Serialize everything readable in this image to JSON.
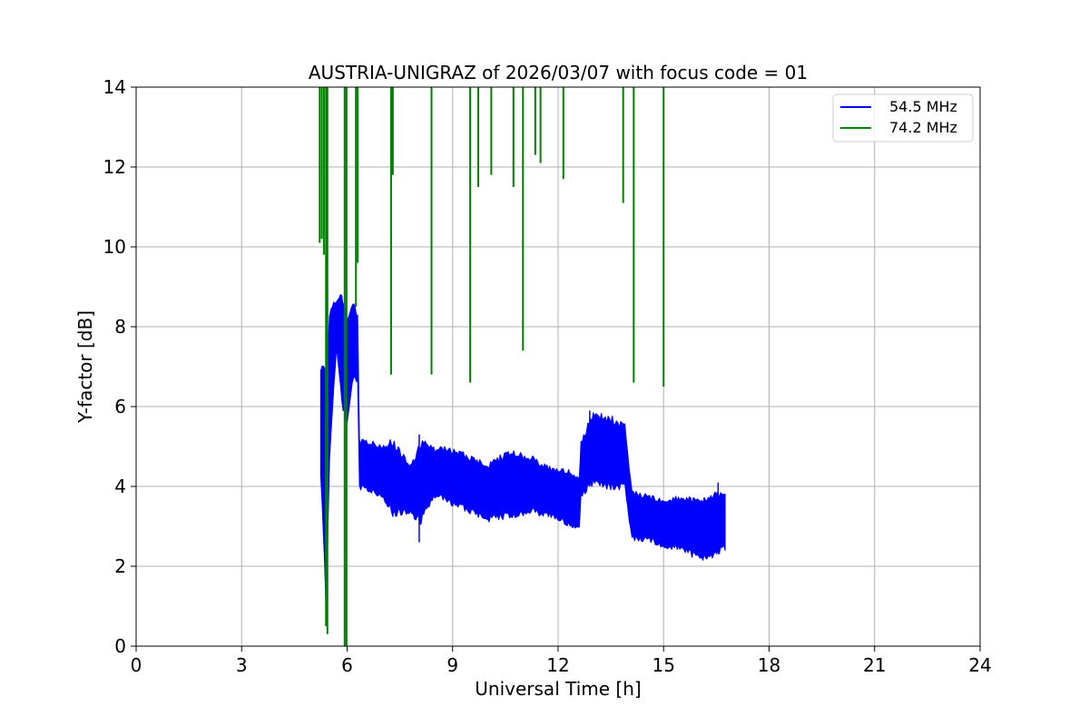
{
  "chart_data": {
    "type": "line",
    "title": "AUSTRIA-UNIGRAZ of 2026/03/07 with focus code = 01",
    "xlabel": "Universal Time [h]",
    "ylabel": "Y-factor [dB]",
    "xlim": [
      0,
      24
    ],
    "ylim": [
      0,
      14
    ],
    "xticks": [
      0,
      3,
      6,
      9,
      12,
      15,
      18,
      21,
      24
    ],
    "yticks": [
      0,
      2,
      4,
      6,
      8,
      10,
      12,
      14
    ],
    "grid": true,
    "legend_position": "top-right",
    "series": [
      {
        "name": "54.5 MHz",
        "color": "#0000ff",
        "render": "band",
        "points": [
          {
            "x": 5.25,
            "lo": 4.2,
            "hi": 7.2
          },
          {
            "x": 5.4,
            "lo": 0.5,
            "hi": 7.0
          },
          {
            "x": 5.5,
            "lo": 4.5,
            "hi": 8.6
          },
          {
            "x": 5.7,
            "lo": 7.4,
            "hi": 8.7
          },
          {
            "x": 5.85,
            "lo": 6.0,
            "hi": 9.0
          },
          {
            "x": 6.0,
            "lo": 5.5,
            "hi": 8.4
          },
          {
            "x": 6.15,
            "lo": 6.5,
            "hi": 8.7
          },
          {
            "x": 6.3,
            "lo": 6.6,
            "hi": 8.4
          },
          {
            "x": 6.35,
            "lo": 3.9,
            "hi": 5.2
          },
          {
            "x": 7.0,
            "lo": 3.7,
            "hi": 5.1
          },
          {
            "x": 7.3,
            "lo": 3.2,
            "hi": 5.2
          },
          {
            "x": 7.8,
            "lo": 3.3,
            "hi": 4.6
          },
          {
            "x": 8.1,
            "lo": 3.0,
            "hi": 5.2
          },
          {
            "x": 8.5,
            "lo": 3.7,
            "hi": 5.0
          },
          {
            "x": 9.0,
            "lo": 3.5,
            "hi": 5.0
          },
          {
            "x": 9.5,
            "lo": 3.3,
            "hi": 4.8
          },
          {
            "x": 10.0,
            "lo": 3.1,
            "hi": 4.6
          },
          {
            "x": 10.7,
            "lo": 3.2,
            "hi": 5.0
          },
          {
            "x": 11.2,
            "lo": 3.3,
            "hi": 4.8
          },
          {
            "x": 11.8,
            "lo": 3.2,
            "hi": 4.5
          },
          {
            "x": 12.3,
            "lo": 3.0,
            "hi": 4.5
          },
          {
            "x": 12.6,
            "lo": 2.9,
            "hi": 4.3
          },
          {
            "x": 12.65,
            "lo": 3.7,
            "hi": 5.2
          },
          {
            "x": 13.0,
            "lo": 4.0,
            "hi": 5.9
          },
          {
            "x": 13.5,
            "lo": 3.9,
            "hi": 5.8
          },
          {
            "x": 13.9,
            "lo": 3.9,
            "hi": 5.6
          },
          {
            "x": 14.1,
            "lo": 2.6,
            "hi": 3.9
          },
          {
            "x": 14.6,
            "lo": 2.6,
            "hi": 3.8
          },
          {
            "x": 15.0,
            "lo": 2.4,
            "hi": 3.7
          },
          {
            "x": 15.5,
            "lo": 2.4,
            "hi": 3.8
          },
          {
            "x": 16.0,
            "lo": 2.1,
            "hi": 3.7
          },
          {
            "x": 16.5,
            "lo": 2.2,
            "hi": 3.9
          },
          {
            "x": 16.75,
            "lo": 2.4,
            "hi": 3.8
          }
        ],
        "spikes": [
          {
            "x": 8.05,
            "lo": 2.6,
            "hi": 5.3
          },
          {
            "x": 16.55,
            "lo": 2.3,
            "hi": 4.1
          },
          {
            "x": 12.9,
            "lo": 4.0,
            "hi": 5.9
          }
        ]
      },
      {
        "name": "74.2 MHz",
        "color": "#008000",
        "render": "spikes",
        "spikes": [
          {
            "x": 5.22,
            "min": 10.1
          },
          {
            "x": 5.28,
            "min": 10.2
          },
          {
            "x": 5.34,
            "min": 9.8
          },
          {
            "x": 5.4,
            "min": 0.5
          },
          {
            "x": 5.44,
            "min": 0.3
          },
          {
            "x": 5.93,
            "min": 0.0
          },
          {
            "x": 5.98,
            "min": 0.0
          },
          {
            "x": 6.25,
            "min": 8.5
          },
          {
            "x": 6.3,
            "min": 9.6
          },
          {
            "x": 7.25,
            "min": 6.8
          },
          {
            "x": 7.3,
            "min": 11.8
          },
          {
            "x": 8.4,
            "min": 6.8
          },
          {
            "x": 9.5,
            "min": 6.6
          },
          {
            "x": 9.73,
            "min": 11.5
          },
          {
            "x": 10.1,
            "min": 11.8
          },
          {
            "x": 10.73,
            "min": 11.5
          },
          {
            "x": 11.0,
            "min": 7.4
          },
          {
            "x": 11.35,
            "min": 12.3
          },
          {
            "x": 11.5,
            "min": 12.1
          },
          {
            "x": 12.15,
            "min": 11.7
          },
          {
            "x": 13.85,
            "min": 11.1
          },
          {
            "x": 14.15,
            "min": 6.6
          },
          {
            "x": 15.0,
            "min": 6.5
          }
        ]
      }
    ]
  }
}
